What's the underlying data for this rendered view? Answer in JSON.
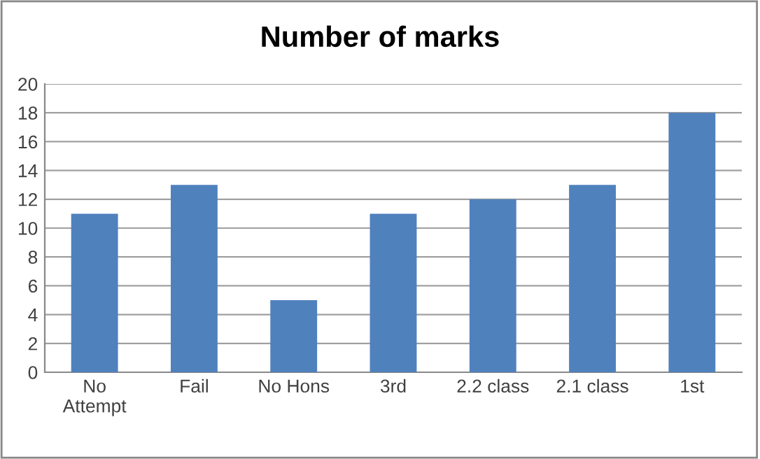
{
  "chart_data": {
    "type": "bar",
    "title": "Number of marks",
    "categories": [
      "No Attempt",
      "Fail",
      "No Hons",
      "3rd",
      "2.2 class",
      "2.1 class",
      "1st"
    ],
    "values": [
      11,
      13,
      5,
      11,
      12,
      13,
      18
    ],
    "color": "#4f81bd",
    "ylim": [
      0,
      20
    ],
    "yticks": [
      0,
      2,
      4,
      6,
      8,
      10,
      12,
      14,
      16,
      18,
      20
    ],
    "grid": "y",
    "legend": false
  }
}
